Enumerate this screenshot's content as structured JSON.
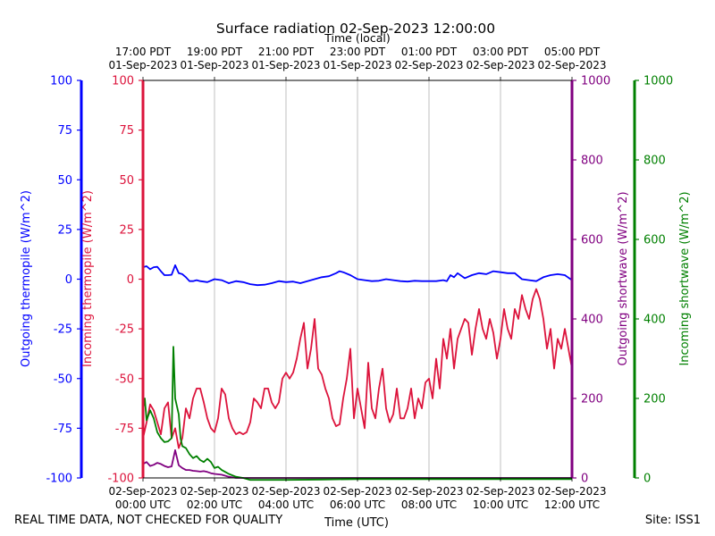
{
  "chart_data": {
    "type": "line",
    "title": "Surface radiation 02-Sep-2023 12:00:00",
    "top_axis_label": "Time (local)",
    "xlabel": "Time (UTC)",
    "x_unit": "hours since 02-Sep-2023 00:00 UTC",
    "xlim": [
      0,
      12
    ],
    "x_ticks_utc": [
      {
        "x": 0,
        "line1": "02-Sep-2023",
        "line2": "00:00 UTC"
      },
      {
        "x": 2,
        "line1": "02-Sep-2023",
        "line2": "02:00 UTC"
      },
      {
        "x": 4,
        "line1": "02-Sep-2023",
        "line2": "04:00 UTC"
      },
      {
        "x": 6,
        "line1": "02-Sep-2023",
        "line2": "06:00 UTC"
      },
      {
        "x": 8,
        "line1": "02-Sep-2023",
        "line2": "08:00 UTC"
      },
      {
        "x": 10,
        "line1": "02-Sep-2023",
        "line2": "10:00 UTC"
      },
      {
        "x": 12,
        "line1": "02-Sep-2023",
        "line2": "12:00 UTC"
      }
    ],
    "x_ticks_local": [
      {
        "x": 0,
        "line1": "17:00 PDT",
        "line2": "01-Sep-2023"
      },
      {
        "x": 2,
        "line1": "19:00 PDT",
        "line2": "01-Sep-2023"
      },
      {
        "x": 4,
        "line1": "21:00 PDT",
        "line2": "01-Sep-2023"
      },
      {
        "x": 6,
        "line1": "23:00 PDT",
        "line2": "01-Sep-2023"
      },
      {
        "x": 8,
        "line1": "01:00 PDT",
        "line2": "02-Sep-2023"
      },
      {
        "x": 10,
        "line1": "03:00 PDT",
        "line2": "02-Sep-2023"
      },
      {
        "x": 12,
        "line1": "05:00 PDT",
        "line2": "02-Sep-2023"
      }
    ],
    "grid": "vertical",
    "axes": {
      "outgoing_thermopile": {
        "label": "Outgoing thermopile (W/m^2)",
        "color": "#0000ff",
        "ylim": [
          -100,
          100
        ],
        "ticks": [
          -100,
          -75,
          -50,
          -25,
          0,
          25,
          50,
          75,
          100
        ]
      },
      "incoming_thermopile": {
        "label": "Incoming thermopile (W/m^2)",
        "color": "#dc143c",
        "ylim": [
          -100,
          100
        ],
        "ticks": [
          -100,
          -75,
          -50,
          -25,
          0,
          25,
          50,
          75,
          100
        ]
      },
      "outgoing_shortwave": {
        "label": "Outgoing shortwave (W/m^2)",
        "color": "#800080",
        "ylim": [
          0,
          1000
        ],
        "ticks": [
          0,
          200,
          400,
          600,
          800,
          1000
        ]
      },
      "incoming_shortwave": {
        "label": "Incoming shortwave (W/m^2)",
        "color": "#008000",
        "ylim": [
          0,
          1000
        ],
        "ticks": [
          0,
          200,
          400,
          600,
          800,
          1000
        ]
      }
    },
    "series": [
      {
        "name": "Outgoing thermopile",
        "axis": "outgoing_thermopile",
        "color": "#0000ff",
        "x": [
          0,
          0.1,
          0.2,
          0.3,
          0.4,
          0.5,
          0.6,
          0.7,
          0.8,
          0.9,
          1.0,
          1.1,
          1.2,
          1.3,
          1.4,
          1.5,
          1.6,
          1.8,
          2.0,
          2.2,
          2.4,
          2.6,
          2.8,
          3.0,
          3.2,
          3.4,
          3.6,
          3.8,
          4.0,
          4.2,
          4.4,
          4.6,
          4.8,
          5.0,
          5.2,
          5.4,
          5.5,
          5.6,
          5.8,
          6.0,
          6.2,
          6.4,
          6.6,
          6.8,
          7.0,
          7.2,
          7.4,
          7.6,
          7.8,
          8.0,
          8.2,
          8.4,
          8.5,
          8.6,
          8.7,
          8.8,
          9.0,
          9.2,
          9.4,
          9.6,
          9.8,
          10.0,
          10.2,
          10.4,
          10.6,
          10.8,
          11.0,
          11.2,
          11.4,
          11.6,
          11.8,
          12.0
        ],
        "y": [
          6,
          6.5,
          5,
          6,
          6.2,
          4,
          2,
          2,
          2.2,
          7,
          3,
          2.5,
          1,
          -1,
          -1,
          -0.5,
          -1,
          -1.5,
          0,
          -0.5,
          -2,
          -1,
          -1.5,
          -2.5,
          -3,
          -2.8,
          -2,
          -1,
          -1.5,
          -1.2,
          -2,
          -1,
          0,
          1,
          1.5,
          3,
          4,
          3.5,
          2,
          0,
          -0.5,
          -1,
          -0.8,
          0,
          -0.5,
          -1,
          -1.2,
          -0.8,
          -1,
          -1,
          -1,
          -0.5,
          -1,
          2,
          1,
          3,
          0.5,
          2,
          3,
          2.5,
          4,
          3.5,
          3,
          3,
          0,
          -0.5,
          -1,
          1,
          2,
          2.5,
          2,
          -0.5
        ]
      },
      {
        "name": "Incoming thermopile",
        "axis": "incoming_thermopile",
        "color": "#dc143c",
        "x": [
          0,
          0.1,
          0.2,
          0.3,
          0.4,
          0.5,
          0.6,
          0.7,
          0.8,
          0.9,
          1.0,
          1.1,
          1.2,
          1.3,
          1.4,
          1.5,
          1.6,
          1.7,
          1.8,
          1.9,
          2.0,
          2.1,
          2.2,
          2.3,
          2.4,
          2.5,
          2.6,
          2.7,
          2.8,
          2.9,
          3.0,
          3.1,
          3.2,
          3.3,
          3.4,
          3.5,
          3.6,
          3.7,
          3.8,
          3.9,
          4.0,
          4.1,
          4.2,
          4.3,
          4.4,
          4.5,
          4.6,
          4.7,
          4.8,
          4.9,
          5.0,
          5.1,
          5.2,
          5.3,
          5.4,
          5.5,
          5.6,
          5.7,
          5.8,
          5.9,
          6.0,
          6.1,
          6.2,
          6.3,
          6.4,
          6.5,
          6.6,
          6.7,
          6.8,
          6.9,
          7.0,
          7.1,
          7.2,
          7.3,
          7.4,
          7.5,
          7.6,
          7.7,
          7.8,
          7.9,
          8.0,
          8.1,
          8.2,
          8.3,
          8.4,
          8.5,
          8.6,
          8.7,
          8.8,
          8.9,
          9.0,
          9.1,
          9.2,
          9.3,
          9.4,
          9.5,
          9.6,
          9.7,
          9.8,
          9.9,
          10.0,
          10.1,
          10.2,
          10.3,
          10.4,
          10.5,
          10.6,
          10.7,
          10.8,
          10.9,
          11.0,
          11.1,
          11.2,
          11.3,
          11.4,
          11.5,
          11.6,
          11.7,
          11.8,
          11.9,
          12.0
        ],
        "y": [
          -80,
          -72,
          -63,
          -66,
          -72,
          -78,
          -65,
          -62,
          -80,
          -75,
          -85,
          -80,
          -65,
          -70,
          -60,
          -55,
          -55,
          -62,
          -70,
          -75,
          -77,
          -70,
          -55,
          -58,
          -70,
          -75,
          -78,
          -77,
          -78,
          -77,
          -72,
          -60,
          -62,
          -65,
          -55,
          -55,
          -62,
          -65,
          -62,
          -50,
          -47,
          -50,
          -47,
          -40,
          -30,
          -22,
          -45,
          -35,
          -20,
          -45,
          -48,
          -55,
          -60,
          -70,
          -74,
          -73,
          -60,
          -50,
          -35,
          -70,
          -55,
          -65,
          -75,
          -42,
          -65,
          -70,
          -55,
          -45,
          -65,
          -72,
          -68,
          -55,
          -70,
          -70,
          -65,
          -55,
          -70,
          -60,
          -65,
          -52,
          -50,
          -60,
          -40,
          -55,
          -30,
          -40,
          -25,
          -45,
          -30,
          -25,
          -20,
          -22,
          -38,
          -25,
          -15,
          -25,
          -30,
          -20,
          -27,
          -40,
          -30,
          -15,
          -25,
          -30,
          -15,
          -20,
          -8,
          -15,
          -20,
          -10,
          -5,
          -10,
          -20,
          -35,
          -25,
          -45,
          -30,
          -35,
          -25,
          -35,
          -45
        ]
      },
      {
        "name": "Outgoing shortwave",
        "axis": "outgoing_shortwave",
        "color": "#800080",
        "x": [
          0,
          0.1,
          0.2,
          0.3,
          0.4,
          0.5,
          0.6,
          0.7,
          0.8,
          0.9,
          1.0,
          1.1,
          1.2,
          1.3,
          1.4,
          1.5,
          1.6,
          1.7,
          1.8,
          1.9,
          2.0,
          2.2,
          2.4,
          2.6,
          3,
          4,
          5,
          6,
          7,
          8,
          9,
          10,
          11,
          12
        ],
        "y": [
          35,
          40,
          30,
          33,
          38,
          35,
          30,
          27,
          29,
          70,
          32,
          25,
          20,
          20,
          18,
          17,
          16,
          17,
          15,
          12,
          10,
          8,
          3,
          0,
          0,
          0,
          0,
          0,
          0,
          0,
          0,
          0,
          0,
          0
        ]
      },
      {
        "name": "Incoming shortwave",
        "axis": "incoming_shortwave",
        "color": "#008000",
        "x": [
          0,
          0.05,
          0.1,
          0.2,
          0.3,
          0.4,
          0.5,
          0.6,
          0.7,
          0.8,
          0.85,
          0.9,
          0.95,
          1.0,
          1.05,
          1.1,
          1.2,
          1.3,
          1.4,
          1.5,
          1.6,
          1.7,
          1.8,
          1.9,
          2.0,
          2.1,
          2.2,
          2.4,
          2.6,
          2.8,
          3,
          4,
          5,
          6,
          7,
          8,
          9,
          10,
          11,
          12
        ],
        "y": [
          170,
          200,
          145,
          170,
          150,
          115,
          100,
          90,
          92,
          100,
          330,
          200,
          180,
          160,
          100,
          80,
          75,
          60,
          50,
          55,
          45,
          40,
          48,
          40,
          25,
          28,
          20,
          10,
          3,
          0,
          -5,
          -5,
          -4,
          -3,
          -3,
          -3,
          -3,
          -3,
          -3,
          -3
        ]
      }
    ]
  },
  "footer": {
    "left_note": "REAL TIME DATA, NOT CHECKED FOR QUALITY",
    "site": "Site: ISS1"
  }
}
